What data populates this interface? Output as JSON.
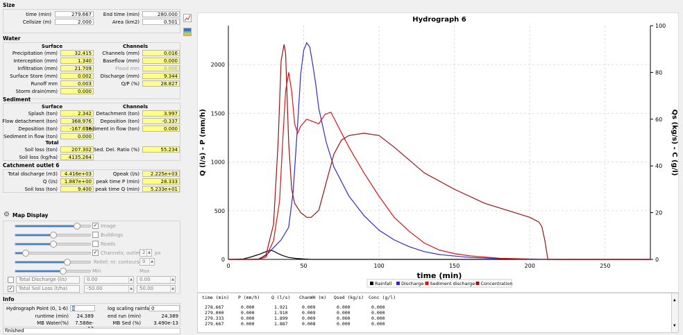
{
  "size": {
    "title": "Size",
    "time_label": "time (min)",
    "time_value": "279.667",
    "end_label": "End time (min)",
    "end_value": "280.000",
    "cell_label": "Cellsize (m)",
    "cell_value": "2.000",
    "area_label": "Area (km2)",
    "area_value": "0.501"
  },
  "water": {
    "title": "Water",
    "surface": "Surface",
    "channels": "Channels",
    "rows": [
      {
        "l1": "Precipitation (mm)",
        "v1": "32.415",
        "l2": "Channels (mm)",
        "v2": "0.016"
      },
      {
        "l1": "Interception (mm)",
        "v1": "1.340",
        "l2": "Baseflow (mm)",
        "v2": "0.000"
      },
      {
        "l1": "Infiltration (mm)",
        "v1": "21.709",
        "l2": "Flood mm",
        "v2": "0.000"
      },
      {
        "l1": "Surface Store (mm)",
        "v1": "0.002",
        "l2": "Discharge (mm)",
        "v2": "9.344"
      },
      {
        "l1": "Runoff mm",
        "v1": "0.003",
        "l2": "Q/P (%)",
        "v2": "28.827"
      }
    ],
    "storm_label": "Storm drain(mm)",
    "storm_value": "0.000"
  },
  "sediment": {
    "title": "Sediment",
    "surface": "Surface",
    "channels": "Channels",
    "rows": [
      {
        "l1": "Splash (ton)",
        "v1": "2.342",
        "l2": "Detachment (ton)",
        "v2": "3.997"
      },
      {
        "l1": "Flow detachment (ton)",
        "v1": "368.976",
        "l2": "Deposition (ton)",
        "v2": "-0.337"
      },
      {
        "l1": "Deposition (ton)",
        "v1": "-167.676",
        "l2": "Sediment in flow (ton)",
        "v2": "0.000"
      }
    ],
    "sif_label": "Sediment in flow (ton)",
    "sif_value": "0.000",
    "total": "Total",
    "soilloss_label": "Soil loss (ton)",
    "soilloss_value": "207.302",
    "sdr_label": "Sed. Del. Ratio  (%)",
    "sdr_value": "55.234",
    "soilkg_label": "Soil loss (kg/ha)",
    "soilkg_value": "4135.264"
  },
  "outlet": {
    "title": "Catchment outlet 6",
    "rows": [
      {
        "l1": "Total discharge (m3)",
        "v1": "4.416e+03",
        "l2": "Qpeak (l/s)",
        "v2": "2.225e+03"
      },
      {
        "l1": "Q (l/s)",
        "v1": "1.887e+00",
        "l2": "peak time P (min)",
        "v2": "28.333"
      },
      {
        "l1": "Soil loss (ton)",
        "v1": "9.400",
        "l2": "peak time Q (min)",
        "v2": "5.233e+01"
      }
    ]
  },
  "map_display": {
    "title": "Map Display",
    "image": "Image",
    "buildings": "Buildings",
    "roads": "Roads",
    "channels": "Channels; outlets",
    "channels_num": "2",
    "px": "px",
    "relief": "Relief; nr. contours:",
    "relief_num": "0",
    "min": "Min",
    "max": "Max",
    "row1_label": "Total Discharge (l/s)",
    "row1_min": "0.00",
    "row1_max": "0.00",
    "row2_label": "Total Soil Loss (t/ha)",
    "row2_min": "-50.00",
    "row2_max": "50.00"
  },
  "info": {
    "title": "Info",
    "hp_label": "Hydrograph Point (0, 1-6)",
    "hp_value": "6",
    "lsr_label": "log scaling rainfall",
    "lsr_value": "0",
    "runtime_label": "runtime (min)",
    "runtime_value": "24.389",
    "endrun_label": "end run (min)",
    "endrun_value": "24.389",
    "mbw_label": "MB Water(%)",
    "mbw_value": "7.588e-12",
    "mbs_label": "MB Sed (%)",
    "mbs_value": "3.490e-13",
    "status": "finished"
  },
  "chart_data": {
    "type": "line",
    "title": "Hydrograph 6",
    "xlabel": "time (min)",
    "ylabel": "Q (l/s) - P (mm/h)",
    "y2label": "Qs (kg/s) - C (g/l)",
    "xlim": [
      0,
      280
    ],
    "ylim": [
      0,
      2400
    ],
    "y2lim": [
      0,
      100
    ],
    "xticks": [
      0,
      50,
      100,
      150,
      200,
      250
    ],
    "yticks": [
      0,
      500,
      1000,
      1500,
      2000
    ],
    "y2ticks": [
      0,
      20,
      40,
      60,
      80,
      100
    ],
    "legend": [
      "Rainfall",
      "Discharge",
      "Sediment discharge",
      "Concentration"
    ],
    "legend_position": "bottom",
    "series": [
      {
        "name": "Rainfall",
        "axis": "y",
        "color": "#000000",
        "x": [
          0,
          10,
          15,
          20,
          25,
          28,
          30,
          33,
          36,
          40,
          45,
          50,
          55,
          60,
          280
        ],
        "y": [
          0,
          5,
          25,
          50,
          80,
          95,
          85,
          60,
          40,
          20,
          10,
          5,
          0,
          0,
          0
        ]
      },
      {
        "name": "Discharge",
        "axis": "y",
        "color": "#2b2bcc",
        "x": [
          0,
          10,
          20,
          25,
          30,
          35,
          40,
          43,
          46,
          48,
          50,
          52,
          54,
          56,
          58,
          60,
          65,
          70,
          80,
          90,
          100,
          110,
          120,
          130,
          140,
          160,
          180,
          200,
          220,
          280
        ],
        "y": [
          0,
          0,
          5,
          40,
          120,
          200,
          330,
          700,
          1400,
          1900,
          2150,
          2225,
          2180,
          2000,
          1800,
          1550,
          1200,
          950,
          650,
          450,
          300,
          200,
          130,
          80,
          50,
          20,
          8,
          3,
          0,
          0
        ]
      },
      {
        "name": "Sediment discharge",
        "axis": "y2",
        "color": "#dd1111",
        "x": [
          0,
          10,
          20,
          25,
          30,
          34,
          36,
          38,
          40,
          42,
          44,
          46,
          48,
          52,
          56,
          60,
          64,
          68,
          72,
          80,
          90,
          100,
          110,
          120,
          130,
          140,
          150,
          160,
          180,
          200,
          220,
          280
        ],
        "y": [
          0,
          0,
          0,
          1,
          8,
          25,
          50,
          72,
          80,
          72,
          58,
          54,
          57,
          60,
          59,
          58,
          62,
          63,
          58,
          48,
          37,
          27,
          18,
          12,
          7,
          4,
          2.5,
          1.5,
          0.5,
          0.2,
          0,
          0
        ]
      },
      {
        "name": "Concentration",
        "axis": "y2",
        "color": "#991111",
        "x": [
          0,
          10,
          20,
          25,
          30,
          33,
          35,
          37,
          38,
          40,
          42,
          44,
          46,
          48,
          50,
          52,
          55,
          60,
          65,
          70,
          75,
          80,
          90,
          100,
          110,
          130,
          150,
          170,
          190,
          200,
          206,
          208,
          210,
          212,
          280
        ],
        "y": [
          0,
          0,
          0,
          2,
          15,
          50,
          85,
          92,
          88,
          50,
          30,
          24,
          22,
          20,
          19,
          18,
          18,
          21,
          33,
          45,
          51,
          53,
          54,
          53,
          48,
          37,
          30,
          24,
          20,
          18,
          16,
          14,
          8,
          0,
          0
        ]
      }
    ]
  },
  "table": {
    "headers": [
      "time (min)",
      "P (mm/h)",
      "Q (l/s)",
      "ChanWH (m)",
      "Qsed (kg/s)",
      "Conc (g/l)"
    ],
    "rows": [
      [
        "278.667",
        "0.000",
        "1.921",
        "0.009",
        "0.000",
        "0.000"
      ],
      [
        "279.000",
        "0.000",
        "1.910",
        "0.009",
        "0.000",
        "0.000"
      ],
      [
        "279.333",
        "0.000",
        "1.899",
        "0.009",
        "0.000",
        "0.000"
      ],
      [
        "279.667",
        "0.000",
        "1.887",
        "0.008",
        "0.000",
        "0.000"
      ]
    ]
  }
}
